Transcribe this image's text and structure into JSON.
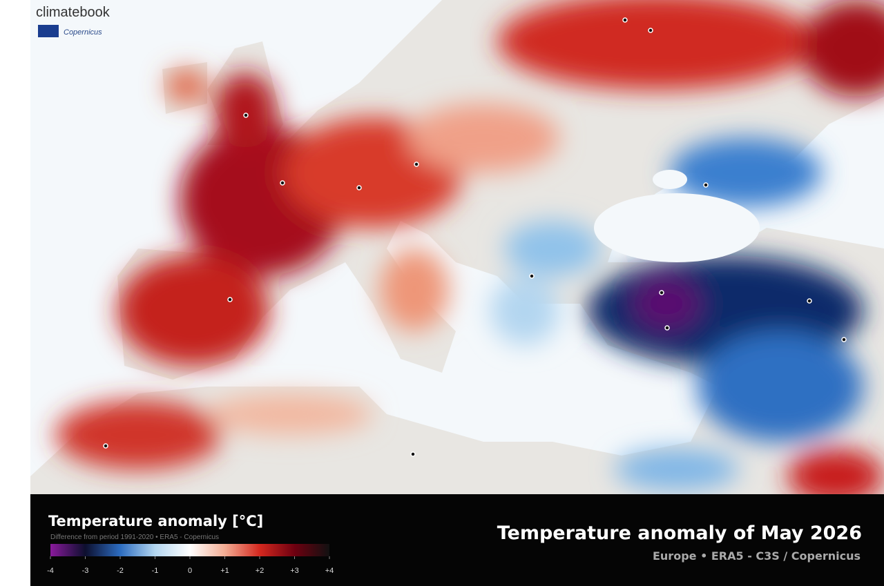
{
  "header": {
    "brand": "climatebook",
    "partner": "Copernicus"
  },
  "map": {
    "title": "Temperature anomaly of May 2026",
    "subtitle": "Europe • ERA5 - C3S / Copernicus"
  },
  "legend": {
    "title": "Temperature anomaly [°C]",
    "subtitle": "Difference from period 1991-2020 • ERA5 - Copernicus",
    "range": [
      -4,
      4
    ],
    "colors": [
      "#8a1a9c",
      "#0d0f2e",
      "#2c6cc0",
      "#b3d6f0",
      "#ffffff",
      "#f3ad94",
      "#d4281f",
      "#6e0010",
      "#111111"
    ],
    "ticks": [
      -4,
      -3,
      -2,
      -1,
      0,
      {
        "value": 1,
        "label": "+1"
      },
      {
        "value": 2,
        "label": "+2"
      },
      {
        "value": 3,
        "label": "+3"
      },
      {
        "value": 4,
        "label": "+4"
      }
    ]
  }
}
